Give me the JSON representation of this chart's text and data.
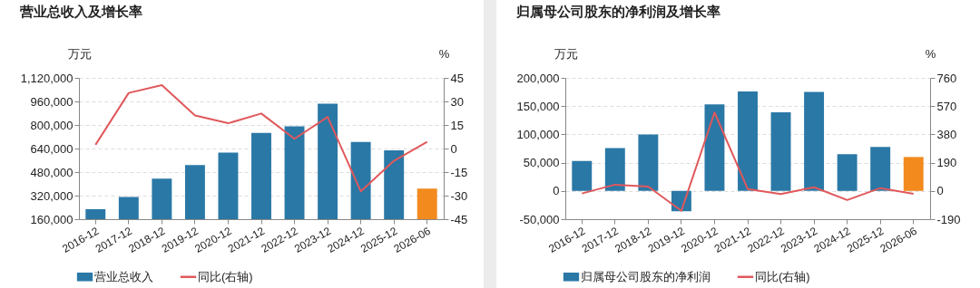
{
  "chart_data": [
    {
      "type": "bar",
      "title": "营业总收入及增长率",
      "ylabel": "万元",
      "y2label": "%",
      "categories": [
        "2016-12",
        "2017-12",
        "2018-12",
        "2019-12",
        "2020-12",
        "2021-12",
        "2022-12",
        "2023-12",
        "2024-12",
        "2025-12",
        "2026-06"
      ],
      "series": [
        {
          "name": "营业总收入",
          "color": "#2a78a6",
          "colors": [
            "#2a78a6",
            "#2a78a6",
            "#2a78a6",
            "#2a78a6",
            "#2a78a6",
            "#2a78a6",
            "#2a78a6",
            "#2a78a6",
            "#2a78a6",
            "#2a78a6",
            "#f28a1e"
          ],
          "values": [
            228000,
            311000,
            436000,
            527000,
            612000,
            746000,
            791000,
            944000,
            685000,
            627000,
            368000
          ]
        },
        {
          "type": "line",
          "name": "同比(右轴)",
          "color": "#e0585b",
          "axis": "y2",
          "values": [
            2.4,
            35.4,
            40.4,
            21.1,
            16.1,
            22.3,
            6.2,
            20.1,
            -27.3,
            -7.8,
            4.2
          ]
        }
      ],
      "ylim": [
        160000,
        1120000
      ],
      "yticks": [
        {
          "value": 160000,
          "label": "160,000"
        },
        {
          "value": 320000,
          "label": "320,000"
        },
        {
          "value": 480000,
          "label": "480,000"
        },
        {
          "value": 640000,
          "label": "640,000"
        },
        {
          "value": 800000,
          "label": "800,000"
        },
        {
          "value": 960000,
          "label": "960,000"
        },
        {
          "value": 1120000,
          "label": "1,120,000"
        }
      ],
      "y2lim": [
        -45,
        45
      ],
      "y2ticks": [
        -45,
        -30,
        -15,
        0,
        15,
        30,
        45
      ],
      "grid": "y",
      "legend": "bottom"
    },
    {
      "type": "bar",
      "title": "归属母公司股东的净利润及增长率",
      "ylabel": "万元",
      "y2label": "%",
      "categories": [
        "2016-12",
        "2017-12",
        "2018-12",
        "2019-12",
        "2020-12",
        "2021-12",
        "2022-12",
        "2023-12",
        "2024-12",
        "2025-12",
        "2026-06"
      ],
      "series": [
        {
          "name": "归属母公司股东的净利润",
          "color": "#2a78a6",
          "colors": [
            "#2a78a6",
            "#2a78a6",
            "#2a78a6",
            "#2a78a6",
            "#2a78a6",
            "#2a78a6",
            "#2a78a6",
            "#2a78a6",
            "#2a78a6",
            "#2a78a6",
            "#f28a1e"
          ],
          "values": [
            53000,
            76000,
            100000,
            -36000,
            153000,
            176000,
            139000,
            175000,
            65000,
            78000,
            60000
          ]
        },
        {
          "type": "line",
          "name": "同比(右轴)",
          "color": "#e0585b",
          "axis": "y2",
          "values": [
            -17,
            42,
            29,
            -134,
            527,
            13,
            -21,
            25,
            -61,
            19,
            -19
          ]
        }
      ],
      "ylim": [
        -50000,
        200000
      ],
      "yticks": [
        {
          "value": -50000,
          "label": "-50,000"
        },
        0,
        {
          "value": 50000,
          "label": "50,000"
        },
        {
          "value": 100000,
          "label": "100,000"
        },
        {
          "value": 150000,
          "label": "150,000"
        },
        {
          "value": 200000,
          "label": "200,000"
        }
      ],
      "y2lim": [
        -190,
        760
      ],
      "y2ticks": [
        -190,
        0,
        190,
        380,
        570,
        760
      ],
      "grid": "y",
      "legend": "bottom"
    }
  ]
}
